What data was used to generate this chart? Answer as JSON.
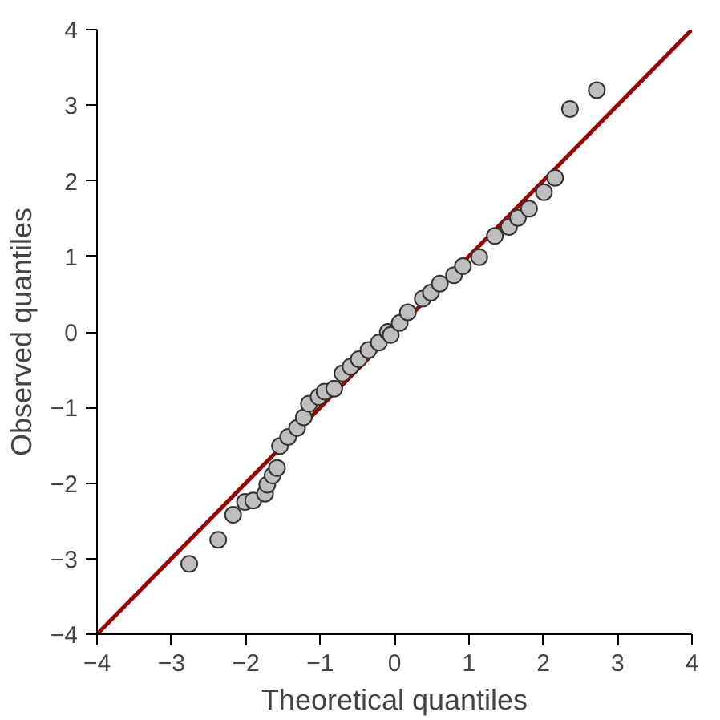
{
  "chart_data": {
    "type": "scatter",
    "xlabel": "Theoretical quantiles",
    "ylabel": "Observed quantiles",
    "xlim": [
      -4,
      4
    ],
    "ylim": [
      -4,
      4
    ],
    "xticks": [
      -4,
      -3,
      -2,
      -1,
      0,
      1,
      2,
      3,
      4
    ],
    "yticks": [
      -4,
      -3,
      -2,
      -1,
      0,
      1,
      2,
      3,
      4
    ],
    "grid": false,
    "series": [
      {
        "type": "line",
        "color": "#990000",
        "x": [
          -4,
          4
        ],
        "values": [
          -4,
          4
        ]
      },
      {
        "color": "#bebebe",
        "marker": "circle",
        "x": [
          -2.76,
          -2.37,
          -2.17,
          -2.01,
          -1.9,
          -1.74,
          -1.71,
          -1.64,
          -1.58,
          -1.54,
          -1.43,
          -1.31,
          -1.22,
          -1.15,
          -1.02,
          -0.94,
          -0.81,
          -0.7,
          -0.59,
          -0.48,
          -0.35,
          -0.21,
          -0.09,
          -0.05,
          0.07,
          0.18,
          0.38,
          0.49,
          0.61,
          0.8,
          0.92,
          1.14,
          1.35,
          1.54,
          1.66,
          1.81,
          2.01,
          2.16,
          2.36,
          2.72
        ],
        "values": [
          -3.07,
          -2.75,
          -2.42,
          -2.25,
          -2.23,
          -2.14,
          -2.02,
          -1.9,
          -1.8,
          -1.51,
          -1.39,
          -1.27,
          -1.13,
          -0.95,
          -0.86,
          -0.79,
          -0.75,
          -0.55,
          -0.46,
          -0.36,
          -0.24,
          -0.14,
          0.0,
          -0.04,
          0.12,
          0.26,
          0.44,
          0.52,
          0.64,
          0.75,
          0.87,
          0.99,
          1.27,
          1.39,
          1.51,
          1.63,
          1.85,
          2.04,
          2.95,
          3.2
        ]
      }
    ]
  }
}
